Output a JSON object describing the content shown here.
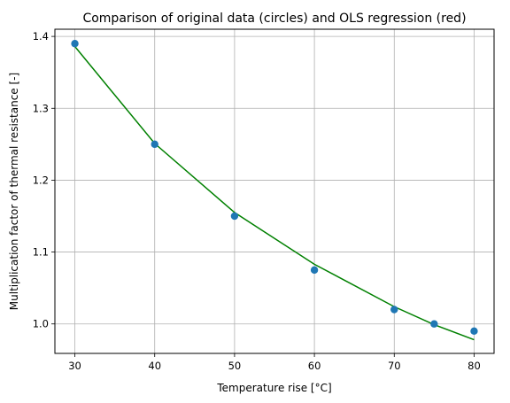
{
  "chart_data": {
    "type": "scatter",
    "title": "Comparison of original data (circles) and OLS regression (red)",
    "xlabel": "Temperature rise [°C]",
    "ylabel": "Multiplication factor of thermal resistance [-]",
    "xlim": [
      27.5,
      82.5
    ],
    "ylim": [
      0.959,
      1.41
    ],
    "grid": true,
    "x_ticks": [
      30,
      40,
      50,
      60,
      70,
      80
    ],
    "y_ticks": [
      1.0,
      1.1,
      1.2,
      1.3,
      1.4
    ],
    "series": [
      {
        "type": "scatter",
        "color": "#1f77b4",
        "points": [
          {
            "x": 30,
            "y": 1.39
          },
          {
            "x": 40,
            "y": 1.25
          },
          {
            "x": 50,
            "y": 1.15
          },
          {
            "x": 60,
            "y": 1.075
          },
          {
            "x": 70,
            "y": 1.02
          },
          {
            "x": 75,
            "y": 1.0
          },
          {
            "x": 80,
            "y": 0.99
          }
        ]
      },
      {
        "type": "line",
        "color": "#008000",
        "points": [
          {
            "x": 30,
            "y": 1.386
          },
          {
            "x": 40,
            "y": 1.251
          },
          {
            "x": 50,
            "y": 1.155
          },
          {
            "x": 60,
            "y": 1.083
          },
          {
            "x": 70,
            "y": 1.024
          },
          {
            "x": 75,
            "y": 0.999
          },
          {
            "x": 80,
            "y": 0.978
          }
        ]
      }
    ]
  }
}
